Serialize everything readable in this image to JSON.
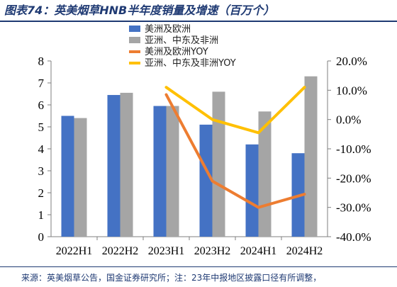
{
  "title": "图表74：英美烟草HNB半年度销量及增速（百万个）",
  "source": "来源：英美烟草公告，国金证券研究所；注：23年中报地区披露口径有所调整，",
  "chart_data": {
    "type": "bar+line",
    "categories": [
      "2022H1",
      "2022H2",
      "2023H1",
      "2023H2",
      "2024H1",
      "2024H2"
    ],
    "bar_series": [
      {
        "name": "美洲及欧洲",
        "color": "#4472C4",
        "values": [
          5.5,
          6.45,
          5.95,
          5.1,
          4.2,
          3.8
        ]
      },
      {
        "name": "亚洲、中东及非洲",
        "color": "#A5A5A5",
        "values": [
          5.4,
          6.55,
          5.95,
          6.6,
          5.7,
          7.3
        ]
      }
    ],
    "line_series": [
      {
        "name": "美洲及欧洲YOY",
        "color": "#ED7D31",
        "values": [
          null,
          null,
          8.5,
          -21.0,
          -30.0,
          -25.5
        ]
      },
      {
        "name": "亚洲、中东及非洲YOY",
        "color": "#FFC000",
        "values": [
          null,
          null,
          11.0,
          0.0,
          -4.5,
          11.0
        ]
      }
    ],
    "y_left": {
      "min": 0,
      "max": 8,
      "ticks": [
        "0",
        "1",
        "2",
        "3",
        "4",
        "5",
        "6",
        "7",
        "8"
      ]
    },
    "y_right": {
      "min": -40,
      "max": 20,
      "ticks": [
        "20.0%",
        "10.0%",
        "0.0%",
        "-10.0%",
        "-20.0%",
        "-30.0%",
        "-40.0%"
      ]
    },
    "legend_position": "top-center"
  }
}
